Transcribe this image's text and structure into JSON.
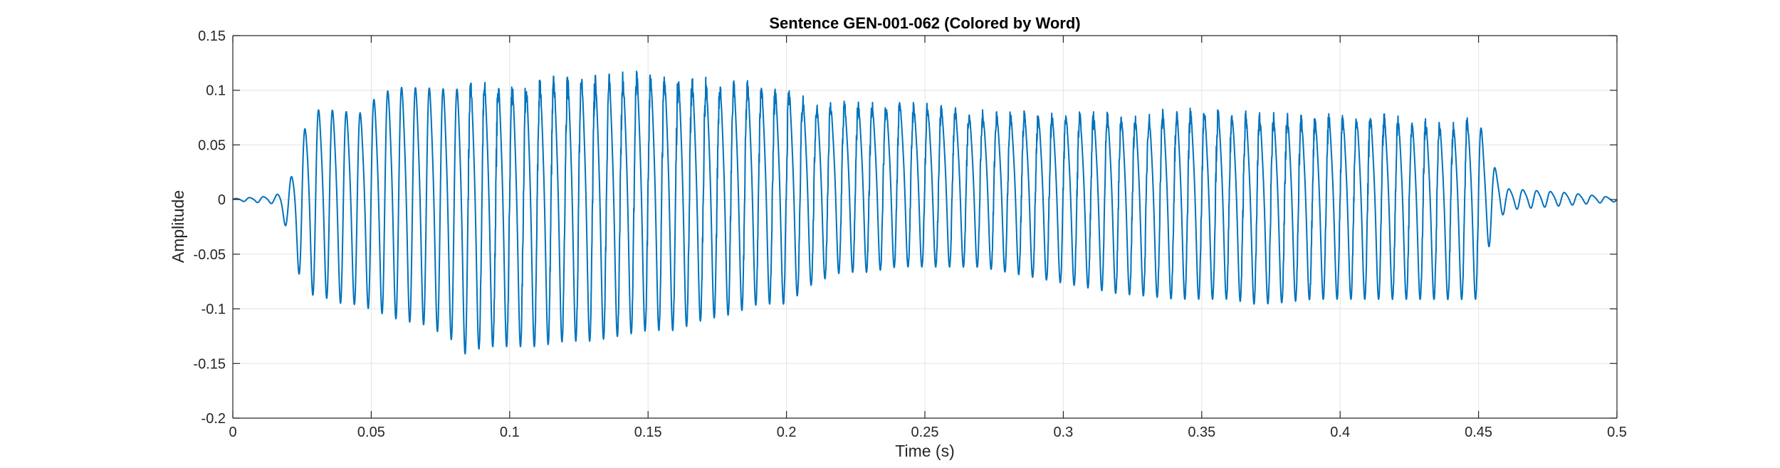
{
  "chart_data": {
    "type": "line",
    "title": "Sentence GEN-001-062 (Colored by Word)",
    "xlabel": "Time (s)",
    "ylabel": "Amplitude",
    "xlim": [
      0,
      0.5
    ],
    "ylim": [
      -0.2,
      0.15
    ],
    "xticks": [
      0,
      0.05,
      0.1,
      0.15,
      0.2,
      0.25,
      0.3,
      0.35,
      0.4,
      0.45,
      0.5
    ],
    "xtick_labels": [
      "0",
      "0.05",
      "0.1",
      "0.15",
      "0.2",
      "0.25",
      "0.3",
      "0.35",
      "0.4",
      "0.45",
      "0.5"
    ],
    "yticks": [
      -0.2,
      -0.15,
      -0.1,
      -0.05,
      0,
      0.05,
      0.1,
      0.15
    ],
    "ytick_labels": [
      "-0.2",
      "-0.15",
      "-0.1",
      "-0.05",
      "0",
      "0.05",
      "0.1",
      "0.15"
    ],
    "grid": true,
    "legend": "none",
    "series_color": "#0072BD",
    "series": [
      {
        "x": [
          0,
          0.005,
          0.01,
          0.015,
          0.02,
          0.023,
          0.027,
          0.03,
          0.035,
          0.04,
          0.045,
          0.05,
          0.055,
          0.06,
          0.07,
          0.08,
          0.085,
          0.09,
          0.1,
          0.11,
          0.12,
          0.125,
          0.13,
          0.14,
          0.15,
          0.16,
          0.17,
          0.18,
          0.19,
          0.2,
          0.205,
          0.21,
          0.22,
          0.23,
          0.24,
          0.25,
          0.26,
          0.27,
          0.28,
          0.29,
          0.3,
          0.31,
          0.32,
          0.33,
          0.34,
          0.35,
          0.36,
          0.37,
          0.38,
          0.39,
          0.4,
          0.41,
          0.42,
          0.43,
          0.44,
          0.45,
          0.455,
          0.46,
          0.47,
          0.48,
          0.49,
          0.5
        ],
        "y_max": [
          0.001,
          0.002,
          0.003,
          0.004,
          0.015,
          0.05,
          0.09,
          0.1,
          0.1,
          0.1,
          0.095,
          0.11,
          0.12,
          0.125,
          0.125,
          0.125,
          0.128,
          0.125,
          0.125,
          0.127,
          0.13,
          0.133,
          0.13,
          0.13,
          0.132,
          0.13,
          0.125,
          0.125,
          0.12,
          0.115,
          0.11,
          0.1,
          0.1,
          0.1,
          0.1,
          0.098,
          0.095,
          0.09,
          0.09,
          0.09,
          0.09,
          0.09,
          0.09,
          0.09,
          0.095,
          0.095,
          0.093,
          0.09,
          0.09,
          0.088,
          0.09,
          0.09,
          0.088,
          0.085,
          0.08,
          0.09,
          0.04,
          0.012,
          0.01,
          0.008,
          0.005,
          0.002
        ],
        "y_min": [
          -0.001,
          -0.002,
          -0.003,
          -0.004,
          -0.03,
          -0.065,
          -0.09,
          -0.092,
          -0.095,
          -0.1,
          -0.1,
          -0.105,
          -0.11,
          -0.115,
          -0.12,
          -0.135,
          -0.15,
          -0.14,
          -0.14,
          -0.14,
          -0.135,
          -0.135,
          -0.135,
          -0.13,
          -0.125,
          -0.125,
          -0.115,
          -0.11,
          -0.1,
          -0.1,
          -0.09,
          -0.08,
          -0.07,
          -0.07,
          -0.065,
          -0.065,
          -0.065,
          -0.065,
          -0.07,
          -0.075,
          -0.08,
          -0.085,
          -0.09,
          -0.092,
          -0.095,
          -0.095,
          -0.095,
          -0.1,
          -0.098,
          -0.095,
          -0.095,
          -0.095,
          -0.095,
          -0.095,
          -0.095,
          -0.095,
          -0.03,
          -0.01,
          -0.008,
          -0.006,
          -0.004,
          -0.002
        ],
        "cycle_period_s": 0.005
      }
    ]
  }
}
